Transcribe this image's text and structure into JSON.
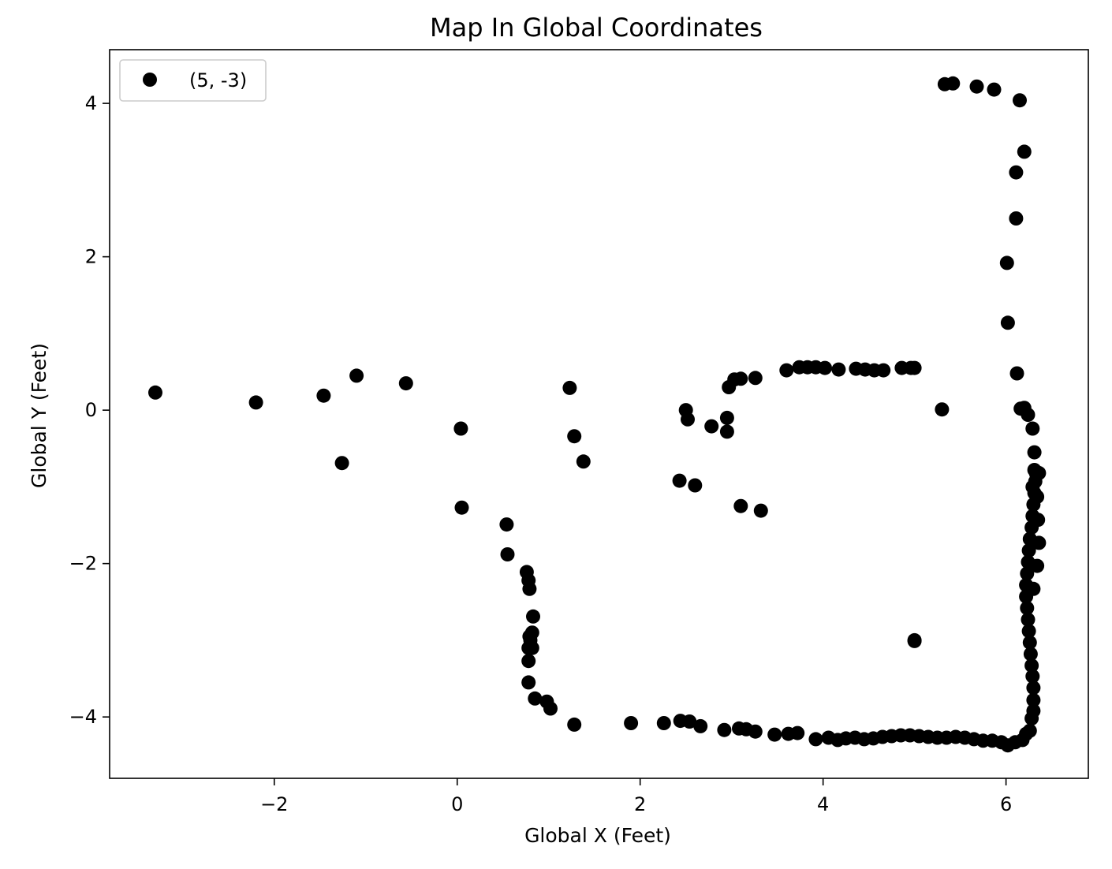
{
  "chart_data": {
    "type": "scatter",
    "title": "Map In Global Coordinates",
    "xlabel": "Global X (Feet)",
    "ylabel": "Global Y (Feet)",
    "xlim": [
      -3.8,
      6.9
    ],
    "ylim": [
      -4.8,
      4.7
    ],
    "xticks": [
      -2,
      0,
      2,
      4,
      6
    ],
    "yticks": [
      -4,
      -2,
      0,
      2,
      4
    ],
    "xtick_labels": [
      "−2",
      "0",
      "2",
      "4",
      "6"
    ],
    "ytick_labels": [
      "−4",
      "−2",
      "0",
      "2",
      "4"
    ],
    "grid": false,
    "legend_position": "top-left",
    "marker_color": "#000000",
    "series": [
      {
        "name": "(5, -3)",
        "x": [
          -3.3,
          -2.2,
          -1.46,
          -1.1,
          -0.56,
          -1.26,
          0.04,
          0.05,
          0.54,
          0.55,
          0.76,
          0.78,
          0.79,
          0.83,
          0.82,
          0.8,
          0.82,
          0.78,
          0.78,
          0.78,
          0.79,
          0.85,
          0.98,
          1.02,
          1.28,
          1.23,
          1.28,
          1.38,
          1.9,
          2.26,
          2.44,
          2.54,
          2.66,
          2.92,
          3.08,
          3.16,
          3.26,
          3.47,
          3.62,
          3.72,
          3.92,
          4.06,
          4.16,
          4.25,
          4.35,
          4.45,
          4.55,
          4.65,
          4.75,
          4.85,
          4.95,
          5.05,
          5.15,
          5.25,
          5.35,
          5.45,
          5.55,
          5.65,
          5.75,
          5.85,
          5.95,
          6.02,
          6.1,
          6.18,
          6.22,
          6.26,
          6.28,
          6.3,
          6.3,
          6.3,
          6.29,
          6.28,
          6.27,
          6.26,
          6.25,
          6.24,
          6.23,
          6.22,
          6.22,
          6.23,
          6.24,
          6.25,
          6.26,
          6.28,
          6.29,
          6.3,
          6.31,
          6.32,
          6.33,
          6.34,
          6.35,
          6.36,
          6.34,
          6.3,
          6.29,
          6.31,
          6.36,
          6.31,
          6.29,
          6.24,
          6.2,
          6.16,
          6.12,
          6.02,
          6.01,
          6.11,
          6.11,
          6.2,
          6.15,
          5.87,
          5.68,
          5.42,
          5.33,
          5.3,
          2.5,
          2.52,
          2.78,
          2.95,
          2.95,
          2.97,
          3.03,
          3.1,
          3.26,
          3.6,
          3.74,
          3.83,
          3.92,
          4.02,
          4.17,
          4.36,
          4.46,
          4.56,
          4.66,
          4.86,
          4.96,
          5.0,
          2.43,
          2.6,
          3.1,
          3.32,
          5.0,
          5.0
        ],
        "y": [
          0.23,
          0.1,
          0.19,
          0.45,
          0.35,
          -0.69,
          -0.24,
          -1.27,
          -1.49,
          -1.88,
          -2.11,
          -2.22,
          -2.33,
          -2.69,
          -2.9,
          -3.0,
          -3.1,
          -3.27,
          -3.55,
          -3.1,
          -2.95,
          -3.76,
          -3.8,
          -3.89,
          -4.1,
          0.29,
          -0.34,
          -0.67,
          -4.08,
          -4.08,
          -4.05,
          -4.06,
          -4.12,
          -4.17,
          -4.15,
          -4.16,
          -4.19,
          -4.23,
          -4.22,
          -4.21,
          -4.29,
          -4.27,
          -4.3,
          -4.28,
          -4.27,
          -4.29,
          -4.28,
          -4.26,
          -4.25,
          -4.24,
          -4.24,
          -4.25,
          -4.26,
          -4.27,
          -4.27,
          -4.26,
          -4.27,
          -4.29,
          -4.31,
          -4.31,
          -4.33,
          -4.37,
          -4.33,
          -4.3,
          -4.22,
          -4.18,
          -4.02,
          -3.92,
          -3.78,
          -3.62,
          -3.47,
          -3.33,
          -3.18,
          -3.03,
          -2.88,
          -2.73,
          -2.58,
          -2.43,
          -2.28,
          -2.13,
          -1.98,
          -1.83,
          -1.68,
          -1.53,
          -1.38,
          -1.23,
          -1.08,
          -0.93,
          -0.83,
          -1.13,
          -1.43,
          -1.73,
          -2.03,
          -2.33,
          -1.0,
          -0.78,
          -0.82,
          -0.55,
          -0.24,
          -0.06,
          0.03,
          0.02,
          0.48,
          1.14,
          1.92,
          2.5,
          3.1,
          3.37,
          4.04,
          4.18,
          4.22,
          4.26,
          4.25,
          0.01,
          0.0,
          -0.12,
          -0.21,
          -0.28,
          -0.1,
          0.3,
          0.4,
          0.41,
          0.42,
          0.52,
          0.56,
          0.56,
          0.56,
          0.55,
          0.53,
          0.54,
          0.53,
          0.52,
          0.52,
          0.55,
          0.55,
          0.55,
          -0.92,
          -0.98,
          -1.25,
          -1.31,
          -3.0,
          -3.01
        ]
      }
    ]
  }
}
